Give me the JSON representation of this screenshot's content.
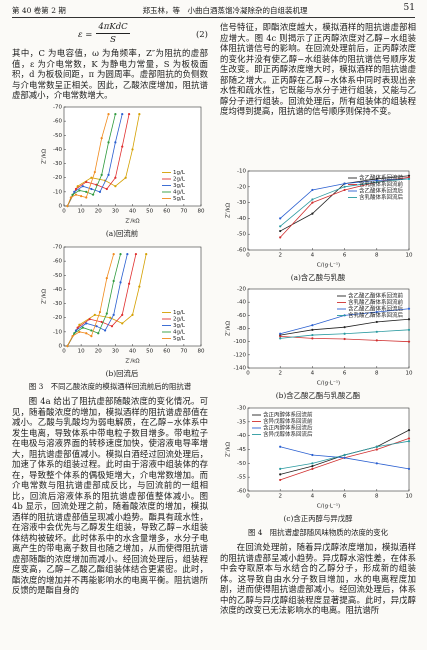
{
  "header": {
    "volume": "第 40 卷第 2 期",
    "running_title": "郑玉林，等　小曲白酒蒸馏冷凝除杂的自组装机理",
    "page": "51"
  },
  "equation": {
    "lhs": "ε =",
    "numerator": "4πKdC",
    "denominator": "S",
    "number": "(2)"
  },
  "left_column": {
    "paragraph_1": "其中，C 为电容值，ω 为角频率，Z″为阻抗的虚部值，ε 为介电常数，K 为静电力常量，S 为板极面积，d 为板极间距，π 为圆周率。虚部阻抗的负侧数与介电常数呈正相关。因此，乙酸浓度增加，阻抗谱虚部减小，介电常数增大。",
    "paragraph_2": "图 4a 给出了阻抗虚部随酸浓度的变化情况。可见，随着酸浓度的增加，模拟酒样的阻抗谱虚部值在减小。乙酸与乳酸均为弱电解质，在乙醇−水体系中发生电离，导致体系中带电粒子数目增多。带电粒子在电极与溶液界面的转移速度加快，使溶液电导率增大，阻抗谱虚部值减小。模拟白酒经过回流处理后，加速了体系的组装过程。此时由于溶液中组装体的存在，导致整个体系的偶极矩增大，介电常数增加。而介电常数与阻抗谱虚部成反比，与回流前的一组相比，回流后溶液体系的阻抗谱虚部值整体减小。图 4b 显示，回流处理之前，随着酸浓度的增加，模拟酒样的阻抗谱虚部值呈现减小趋势。酯具有疏水性，在溶液中会优先与乙醇发生组装，导致乙醇−水组装体结构被破坏。此时体系中的水含量增多，水分子电离产生的带电离子数目也随之增加，从而使得阻抗谱虚部随酯的浓度增加而减小。经回流处理后，组装程度变高，乙醇−乙酸乙酯组装体结合更紧密。此时，酯浓度的增加并不再能影响水的电离平衡。阻抗谱所反馈的是酯自身的"
  },
  "figure_3": {
    "caption": "图 3　不同乙酸浓度的模拟酒样回流前后的阻抗谱",
    "panels": [
      {
        "type": "line",
        "caption": "(a)回流前",
        "xlabel": "Z′/kΩ",
        "ylabel": "Z″/kΩ",
        "xlim": [
          0,
          80
        ],
        "xticks": [
          0,
          10,
          20,
          30,
          40,
          50,
          60,
          70,
          80
        ],
        "ylim": [
          0,
          -70
        ],
        "yticks": [
          0,
          -10,
          -20,
          -30,
          -40,
          -50,
          -60,
          -70
        ],
        "legend": "lower right",
        "series": [
          {
            "name": "1g/L",
            "color": "#d4a000",
            "x": [
              2,
              8,
              16,
              24,
              30,
              36,
              40,
              44
            ],
            "y": [
              0,
              -14,
              -20,
              -18,
              -14,
              -20,
              -40,
              -65
            ]
          },
          {
            "name": "2g/L",
            "color": "#e03030",
            "x": [
              2,
              7,
              13,
              19,
              25,
              30,
              34,
              38
            ],
            "y": [
              0,
              -12,
              -17,
              -15,
              -12,
              -20,
              -42,
              -65
            ]
          },
          {
            "name": "3g/L",
            "color": "#2a5fd0",
            "x": [
              2,
              6,
              11,
              16,
              21,
              26,
              30,
              34
            ],
            "y": [
              0,
              -10,
              -14,
              -12,
              -10,
              -22,
              -45,
              -65
            ]
          },
          {
            "name": "4g/L",
            "color": "#2e9a3c",
            "x": [
              2,
              5,
              9,
              13,
              17,
              22,
              26,
              30
            ],
            "y": [
              0,
              -8,
              -11,
              -10,
              -8,
              -22,
              -45,
              -65
            ]
          },
          {
            "name": "5g/L",
            "color": "#f08a1c",
            "x": [
              2,
              4,
              7,
              10,
              13,
              18,
              22,
              26
            ],
            "y": [
              0,
              -6,
              -8,
              -7,
              -6,
              -24,
              -48,
              -65
            ]
          }
        ]
      },
      {
        "type": "line",
        "caption": "(b)回流后",
        "xlabel": "Z′/kΩ",
        "ylabel": "Z″/kΩ",
        "xlim": [
          0,
          80
        ],
        "xticks": [
          0,
          10,
          20,
          30,
          40,
          50,
          60,
          70,
          80
        ],
        "ylim": [
          0,
          -70
        ],
        "yticks": [
          0,
          -10,
          -20,
          -30,
          -40,
          -50,
          -60,
          -70
        ],
        "legend": "lower right",
        "series": [
          {
            "name": "1g/L",
            "color": "#d4a000",
            "x": [
              2,
              9,
              18,
              27,
              34,
              40,
              44,
              48
            ],
            "y": [
              0,
              -15,
              -22,
              -20,
              -16,
              -22,
              -42,
              -65
            ]
          },
          {
            "name": "2g/L",
            "color": "#e03030",
            "x": [
              2,
              8,
              15,
              22,
              28,
              34,
              38,
              42
            ],
            "y": [
              0,
              -13,
              -19,
              -17,
              -14,
              -22,
              -44,
              -65
            ]
          },
          {
            "name": "3g/L",
            "color": "#2a5fd0",
            "x": [
              2,
              7,
              13,
              19,
              24,
              29,
              33,
              37
            ],
            "y": [
              0,
              -11,
              -16,
              -14,
              -11,
              -22,
              -45,
              -65
            ]
          },
          {
            "name": "4g/L",
            "color": "#2e9a3c",
            "x": [
              2,
              6,
              11,
              16,
              20,
              25,
              29,
              33
            ],
            "y": [
              0,
              -9,
              -13,
              -11,
              -9,
              -23,
              -46,
              -65
            ]
          },
          {
            "name": "5g/L",
            "color": "#f08a1c",
            "x": [
              2,
              5,
              9,
              13,
              16,
              21,
              25,
              29
            ],
            "y": [
              0,
              -7,
              -10,
              -9,
              -7,
              -24,
              -48,
              -65
            ]
          }
        ]
      }
    ]
  },
  "right_column": {
    "paragraph_1": "信号特征，即酯浓度越大，模拟酒样的阻抗谱虚部相应增大。图 4c 则揭示了正丙醇浓度对乙醇−水组装体阻抗谱信号的影响。在回流处理前后，正丙醇浓度的变化并没有使乙醇−水组装体的阻抗谱信号顺序发生改变。即正丙醇浓度增大时，模拟酒样的阻抗谱虚部随之增大。正丙醇在乙醇−水体系中同时表现出亲水性和疏水性，它既能与水分子进行组装，又能与乙醇分子进行组装。回流处理后，所有组装体的组装程度均得到提高，阻抗谱的信号顺序则保持不变。",
    "paragraph_2": "在回流处理前，随着异戊醇浓度增加，模拟酒样的阻抗谱虚部呈减小趋势。异戊醇水溶性差，在体系中会夺取原本与水结合的乙醇分子，形成新的组装体。这导致自由水分子数目增加，水的电离程度加剧，进而使得阻抗谱虚部减小。经回流处理后，体系中的乙醇与异戊醇组装程度显著提高。此时，异戊醇浓度的改变已无法影响水的电离。阻抗谱所"
  },
  "figure_4": {
    "caption": "图 4　阻抗谱虚部随风味物质的浓度的变化",
    "panels": [
      {
        "type": "line",
        "caption": "(a)含乙酸与乳酸",
        "xlabel": "C/(g·L⁻¹)",
        "ylabel": "Z″/kΩ",
        "x": [
          2,
          4,
          6,
          8,
          10
        ],
        "xlim": [
          0,
          10
        ],
        "xticks": [
          0,
          2,
          4,
          6,
          8,
          10
        ],
        "ylim": [
          -60,
          -10
        ],
        "yticks": [
          -60,
          -50,
          -40,
          -30,
          -20,
          -10
        ],
        "legend": "upper right",
        "series": [
          {
            "name": "含乙酸体系回流前",
            "color": "#222222",
            "values": [
              -48,
              -37,
              -18,
              -15,
              -13
            ]
          },
          {
            "name": "含乳酸体系回流前",
            "color": "#d03030",
            "values": [
              -52,
              -30,
              -22,
              -17,
              -14
            ]
          },
          {
            "name": "含乙酸体系回流后",
            "color": "#2a5fd0",
            "values": [
              -40,
              -22,
              -18,
              -16,
              -15
            ]
          },
          {
            "name": "含乳酸体系回流后",
            "color": "#2a9aa0",
            "values": [
              -45,
              -28,
              -20,
              -17,
              -15
            ]
          }
        ]
      },
      {
        "type": "line",
        "caption": "(b)含乙酸乙酯与乳酸乙酯",
        "xlabel": "C/(g·L⁻¹)",
        "ylabel": "Z″/kΩ",
        "x": [
          2,
          4,
          6,
          8,
          10
        ],
        "xlim": [
          0,
          10
        ],
        "xticks": [
          0,
          2,
          4,
          6,
          8,
          10
        ],
        "ylim": [
          -140,
          -20
        ],
        "yticks": [
          -140,
          -120,
          -100,
          -80,
          -60,
          -40,
          -20
        ],
        "legend": "upper right",
        "series": [
          {
            "name": "含乙酸乙酯体系回流前",
            "color": "#222222",
            "values": [
              -90,
              -82,
              -78,
              -70,
              -66
            ]
          },
          {
            "name": "含乳酸乙酯体系回流前",
            "color": "#d03030",
            "values": [
              -92,
              -95,
              -96,
              -98,
              -100
            ]
          },
          {
            "name": "含乙酸乙酯体系回流后",
            "color": "#2a5fd0",
            "values": [
              -88,
              -75,
              -60,
              -55,
              -50
            ]
          },
          {
            "name": "含乳酸乙酯体系回流后",
            "color": "#2a9aa0",
            "values": [
              -95,
              -90,
              -88,
              -85,
              -82
            ]
          }
        ]
      },
      {
        "type": "line",
        "caption": "(c)含正丙醇与异戊醇",
        "xlabel": "C/(g·L⁻¹)",
        "ylabel": "Z″/kΩ",
        "x": [
          2,
          4,
          6,
          8,
          10
        ],
        "xlim": [
          0,
          10
        ],
        "xticks": [
          0,
          2,
          4,
          6,
          8,
          10
        ],
        "ylim": [
          -60,
          -30
        ],
        "yticks": [
          -60,
          -55,
          -50,
          -45,
          -40,
          -35,
          -30
        ],
        "legend": "upper left",
        "series": [
          {
            "name": "含正丙醇体系回流前",
            "color": "#222222",
            "values": [
              -54,
              -51,
              -47,
              -44,
              -38
            ]
          },
          {
            "name": "含异戊醇体系回流前",
            "color": "#d03030",
            "values": [
              -56,
              -52,
              -48,
              -45,
              -41
            ]
          },
          {
            "name": "含正丙醇体系回流后",
            "color": "#2a5fd0",
            "values": [
              -44,
              -47,
              -48,
              -50,
              -52
            ]
          },
          {
            "name": "含异戊醇体系回流后",
            "color": "#2a9aa0",
            "values": [
              -52,
              -50,
              -47,
              -44,
              -42
            ]
          }
        ]
      }
    ]
  }
}
